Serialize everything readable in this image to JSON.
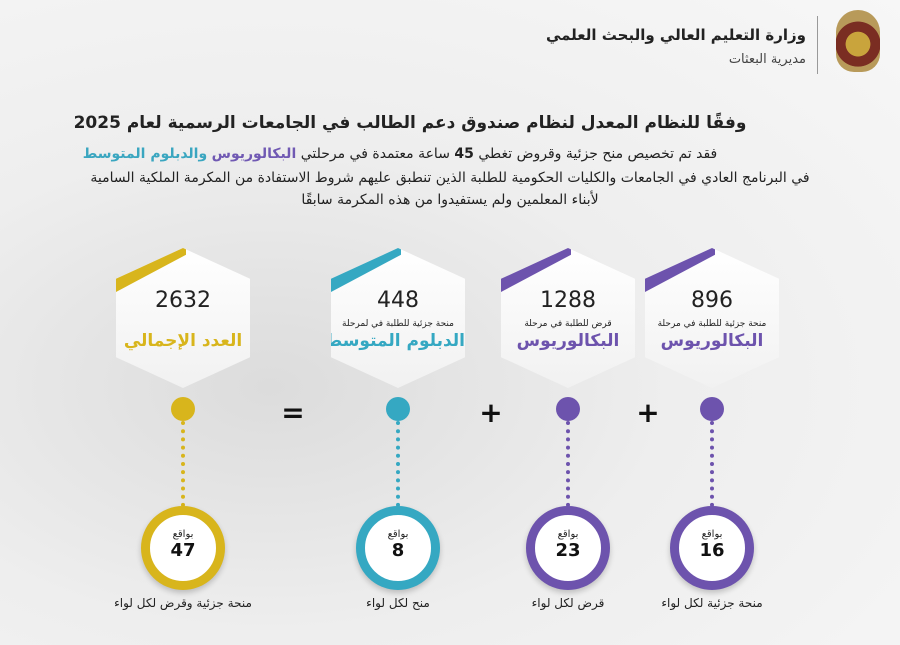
{
  "header": {
    "ministry": "وزارة التعليم العالي والبحث العلمي",
    "directorate": "مديرية البعثات",
    "emblem": "jordan-coat-of-arms"
  },
  "title": "وفقًا للنظام المعدل لنظام صندوق دعم الطالب في الجامعات الرسمية لعام 2025",
  "intro": {
    "line1_a": "فقد تم تخصيص منح جزئية وقروض  تغطي ",
    "line1_hours": "45",
    "line1_b": " ساعة معتمدة في مرحلتي ",
    "line1_bachelor": "البكالوريوس",
    "line1_and_diploma": "والدبلوم  المتوسط",
    "line2": "في البرنامج العادي في الجامعات والكليات الحكومية للطلبة الذين تنطبق عليهم شروط الاستفادة من المكرمة الملكية السامية",
    "line3": "لأبناء المعلمين ولم يستفيدوا من هذه المكرمة سابقًا"
  },
  "colors": {
    "yellow": "#d8b51c",
    "teal": "#35a8c2",
    "purple": "#6d53ad"
  },
  "cards": [
    {
      "number": "896",
      "sub": "منحة جزئية للطلبة في مرحلة",
      "stage": "البكالوريوس",
      "per_label": "بواقع",
      "per_value": "16",
      "per_caption": "منحة جزئية لكل لواء",
      "color": "#6d53ad"
    },
    {
      "number": "1288",
      "sub": "قرض للطلبة في مرحلة",
      "stage": "البكالوريوس",
      "per_label": "بواقع",
      "per_value": "23",
      "per_caption": "قرض لكل لواء",
      "color": "#6d53ad"
    },
    {
      "number": "448",
      "sub": "منحة جزئية للطلبة في لمرحلة",
      "stage": "الدبلوم المتوسط",
      "per_label": "بواقع",
      "per_value": "8",
      "per_caption": "منح لكل لواء",
      "color": "#35a8c2"
    },
    {
      "number": "2632",
      "sub": "",
      "stage": "العدد الإجمالي",
      "per_label": "بواقع",
      "per_value": "47",
      "per_caption": "منحة جزئية وقرض لكل لواء",
      "color": "#d8b51c"
    }
  ],
  "operators": {
    "plus": "+",
    "equals": "="
  }
}
